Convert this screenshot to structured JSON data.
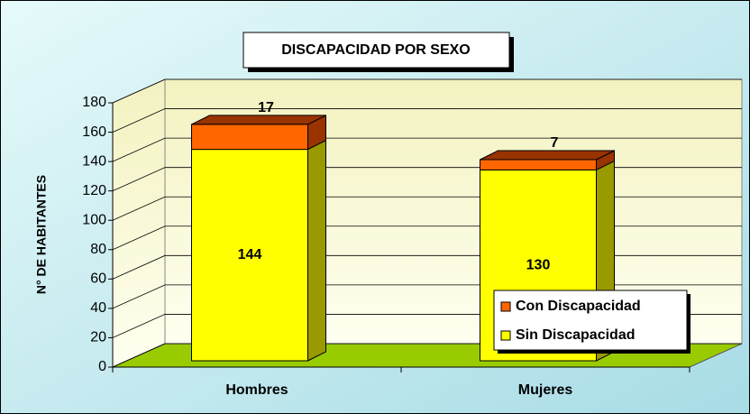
{
  "chart_data": {
    "type": "bar3d-stacked",
    "title": "DISCAPACIDAD POR SEXO",
    "y_label": "N° DE HABITANTES",
    "categories": [
      "Hombres",
      "Mujeres"
    ],
    "series": [
      {
        "name": "Sin Discapacidad",
        "color": "#ffff00",
        "side": "#999900",
        "values": [
          144,
          130
        ]
      },
      {
        "name": "Con Discapacidad",
        "color": "#ff6600",
        "side": "#993300",
        "values": [
          17,
          7
        ]
      }
    ],
    "ylim": [
      0,
      180
    ],
    "yticks": [
      0,
      20,
      40,
      60,
      80,
      100,
      120,
      140,
      160,
      180
    ],
    "grid": true,
    "legend": "lower-right"
  }
}
